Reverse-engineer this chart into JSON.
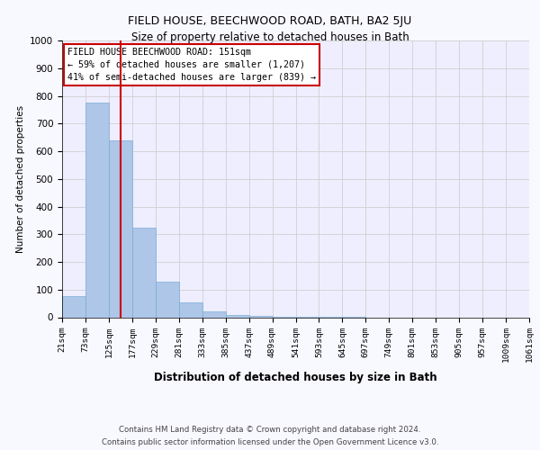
{
  "title1": "FIELD HOUSE, BEECHWOOD ROAD, BATH, BA2 5JU",
  "title2": "Size of property relative to detached houses in Bath",
  "xlabel": "Distribution of detached houses by size in Bath",
  "ylabel": "Number of detached properties",
  "footer1": "Contains HM Land Registry data © Crown copyright and database right 2024.",
  "footer2": "Contains public sector information licensed under the Open Government Licence v3.0.",
  "bin_edges": [
    21,
    73,
    125,
    177,
    229,
    281,
    333,
    385,
    437,
    489,
    541,
    593,
    645,
    697,
    749,
    801,
    853,
    905,
    957,
    1009,
    1061
  ],
  "bar_heights": [
    75,
    775,
    640,
    325,
    130,
    55,
    20,
    8,
    4,
    2,
    1,
    1,
    1,
    0,
    0,
    0,
    0,
    0,
    0,
    0
  ],
  "bar_color": "#aec6e8",
  "bar_edgecolor": "#7aadd4",
  "grid_color": "#d0d0d0",
  "vline_x": 151,
  "vline_color": "#cc0000",
  "annotation_box_text": "FIELD HOUSE BEECHWOOD ROAD: 151sqm\n← 59% of detached houses are smaller (1,207)\n41% of semi-detached houses are larger (839) →",
  "annotation_box_color": "#cc0000",
  "ylim": [
    0,
    1000
  ],
  "yticks": [
    0,
    100,
    200,
    300,
    400,
    500,
    600,
    700,
    800,
    900,
    1000
  ],
  "bg_color": "#f8f8ff",
  "plot_bg_color": "#eeeeff"
}
